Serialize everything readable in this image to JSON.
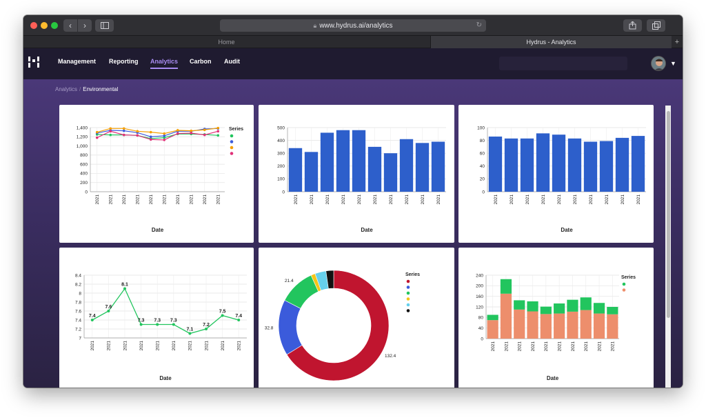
{
  "browser": {
    "url": "www.hydrus.ai/analytics",
    "tabs": [
      "Home",
      "Hydrus - Analytics"
    ]
  },
  "nav": {
    "items": [
      "Management",
      "Reporting",
      "Analytics",
      "Carbon",
      "Audit"
    ],
    "active": "Analytics"
  },
  "breadcrumb": {
    "parent": "Analytics",
    "current": "Environmental"
  },
  "colors": {
    "accent": "#a98cf2",
    "bar_blue": "#2d5fcb",
    "green": "#22c55e",
    "blue": "#3b5bdb",
    "orange": "#f59f00",
    "pink": "#e03178",
    "red": "#c0152f",
    "yellow": "#f5c518",
    "cyan": "#66d0ec",
    "black": "#111111",
    "salmon": "#ed8e6c"
  },
  "chart_data": [
    {
      "type": "line",
      "x": [
        "2021",
        "2021",
        "2021",
        "2021",
        "2021",
        "2021",
        "2021",
        "2021",
        "2021",
        "2021"
      ],
      "xlabel": "Date",
      "ylim": [
        0,
        1400
      ],
      "yticks": [
        "0",
        "200",
        "400",
        "600",
        "800",
        "1,000",
        "1,200",
        "1,400"
      ],
      "legend_title": "Series",
      "series": [
        {
          "color": "#22c55e",
          "values": [
            1250,
            1240,
            1240,
            1230,
            1160,
            1180,
            1260,
            1260,
            1250,
            1230
          ]
        },
        {
          "color": "#3b5bdb",
          "values": [
            1280,
            1340,
            1330,
            1290,
            1200,
            1220,
            1320,
            1320,
            1370,
            1380
          ]
        },
        {
          "color": "#f59f00",
          "values": [
            1300,
            1380,
            1380,
            1320,
            1300,
            1270,
            1340,
            1330,
            1350,
            1390
          ]
        },
        {
          "color": "#e03178",
          "values": [
            1180,
            1320,
            1240,
            1230,
            1140,
            1130,
            1270,
            1280,
            1240,
            1320
          ]
        }
      ]
    },
    {
      "type": "bar",
      "categories": [
        "2021",
        "2021",
        "2021",
        "2021",
        "2021",
        "2021",
        "2021",
        "2021",
        "2021",
        "2021"
      ],
      "values": [
        340,
        310,
        460,
        480,
        480,
        350,
        300,
        410,
        380,
        390
      ],
      "xlabel": "Date",
      "ylim": [
        0,
        500
      ],
      "yticks": [
        "0",
        "100",
        "200",
        "300",
        "400",
        "500"
      ]
    },
    {
      "type": "bar",
      "categories": [
        "2021",
        "2021",
        "2021",
        "2021",
        "2021",
        "2021",
        "2021",
        "2021",
        "2021",
        "2021"
      ],
      "values": [
        86,
        83,
        83,
        91,
        89,
        83,
        78,
        79,
        84,
        87
      ],
      "xlabel": "Date",
      "ylim": [
        0,
        100
      ],
      "yticks": [
        "0",
        "20",
        "40",
        "60",
        "80",
        "100"
      ]
    },
    {
      "type": "line",
      "x": [
        "2021",
        "2021",
        "2021",
        "2021",
        "2021",
        "2021",
        "2021",
        "2021",
        "2021",
        "2021"
      ],
      "values": [
        7.4,
        7.6,
        8.1,
        7.3,
        7.3,
        7.3,
        7.1,
        7.2,
        7.5,
        7.4
      ],
      "labels": [
        "7.4",
        "7.6",
        "8.1",
        "7.3",
        "7.3",
        "7.3",
        "7.1",
        "7.2",
        "7.5",
        "7.4"
      ],
      "xlabel": "Date",
      "ylim": [
        7,
        8.4
      ],
      "yticks": [
        "7",
        "7.2",
        "7.4",
        "7.6",
        "7.8",
        "8",
        "8.2",
        "8.4"
      ]
    },
    {
      "type": "pie",
      "legend_title": "Series",
      "slices": [
        {
          "value": 132.4,
          "label": "132.4",
          "color": "#c0152f"
        },
        {
          "value": 32.8,
          "label": "32.8",
          "color": "#3b5bdb"
        },
        {
          "value": 21.4,
          "label": "21.4",
          "color": "#22c55e"
        },
        {
          "value": 2.5,
          "label": "",
          "color": "#f5c518"
        },
        {
          "value": 6.5,
          "label": "",
          "color": "#66d0ec"
        },
        {
          "value": 4.5,
          "label": "",
          "color": "#111111"
        }
      ]
    },
    {
      "type": "bar",
      "stacked": true,
      "categories": [
        "2021",
        "2021",
        "2021",
        "2021",
        "2021",
        "2021",
        "2021",
        "2021",
        "2021",
        "2021"
      ],
      "xlabel": "Date",
      "ylim": [
        0,
        240
      ],
      "yticks": [
        "0",
        "40",
        "80",
        "120",
        "160",
        "200",
        "240"
      ],
      "legend_title": "Series",
      "series": [
        {
          "color": "#ed8e6c",
          "values": [
            70,
            170,
            110,
            103,
            93,
            95,
            102,
            108,
            95,
            92
          ]
        },
        {
          "color": "#22c55e",
          "values": [
            20,
            55,
            35,
            38,
            28,
            38,
            45,
            48,
            40,
            28
          ]
        }
      ]
    }
  ]
}
